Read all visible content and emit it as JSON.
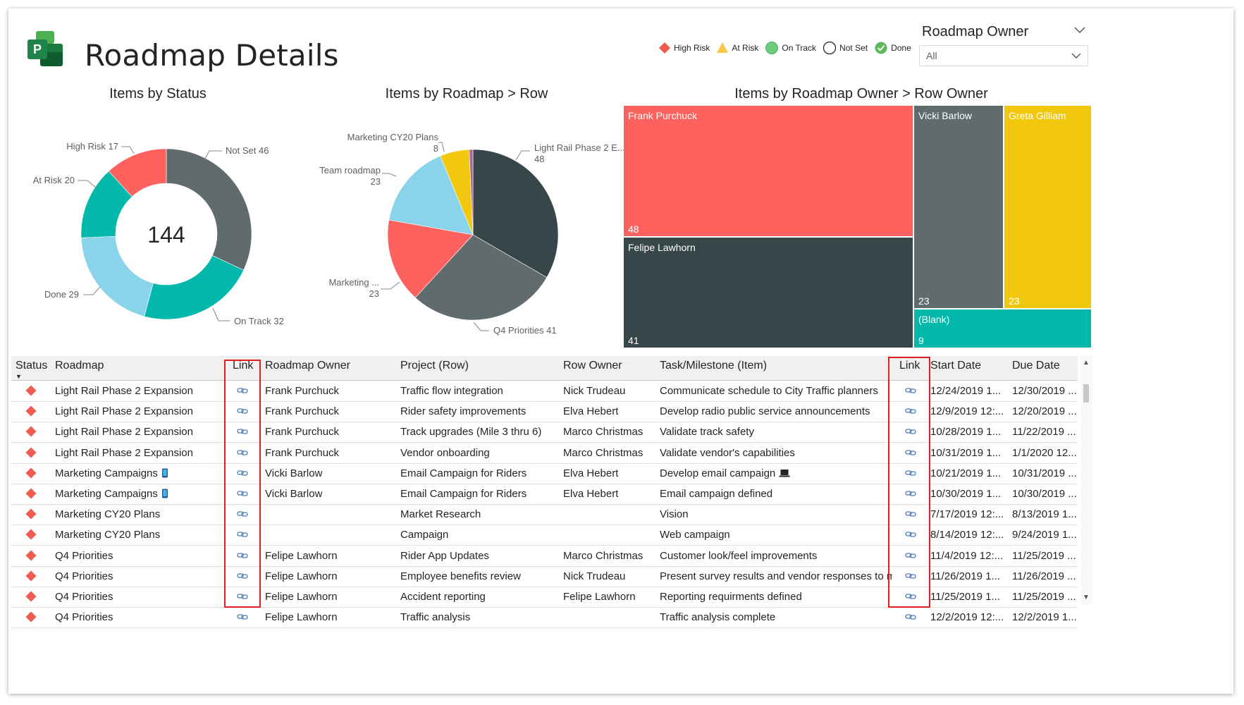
{
  "header": {
    "title": "Roadmap Details",
    "legend": [
      {
        "label": "High Risk",
        "icon": "diamond-icon",
        "color": "#f05b4f"
      },
      {
        "label": "At Risk",
        "icon": "triangle-icon",
        "color": "#f7c948"
      },
      {
        "label": "On Track",
        "icon": "circle-filled-icon",
        "color": "#6dcc7c"
      },
      {
        "label": "Not Set",
        "icon": "circle-empty-icon",
        "color": "#252423"
      },
      {
        "label": "Done",
        "icon": "check-circle-icon",
        "color": "#5cb85c"
      }
    ]
  },
  "slicer": {
    "title": "Roadmap Owner",
    "value": "All"
  },
  "charts": {
    "status": {
      "title": "Items by Status",
      "center": "144"
    },
    "roadmap": {
      "title": "Items by Roadmap > Row"
    },
    "owner": {
      "title": "Items by Roadmap Owner > Row Owner"
    }
  },
  "chart_data": [
    {
      "type": "pie",
      "title": "Items by Status",
      "donut": true,
      "total": 144,
      "categories": [
        "Not Set",
        "On Track",
        "Done",
        "At Risk",
        "High Risk"
      ],
      "values": [
        46,
        32,
        29,
        20,
        17
      ],
      "colors": [
        "#5f6b6d",
        "#01b8aa",
        "#8ad4eb",
        "#01b8aa",
        "#fd625e"
      ],
      "labels": [
        "Not Set 46",
        "On Track 32",
        "Done 29",
        "At Risk 20",
        "High Risk 17"
      ]
    },
    {
      "type": "pie",
      "title": "Items by Roadmap > Row",
      "categories": [
        "Light Rail Phase 2 E...",
        "Q4 Priorities",
        "Marketing ...",
        "Team roadmap",
        "Marketing CY20 Plans",
        ""
      ],
      "values": [
        48,
        41,
        23,
        23,
        8,
        1
      ],
      "colors": [
        "#374649",
        "#5f6b6d",
        "#fd625e",
        "#8ad4eb",
        "#f2c80f",
        "#a66999"
      ],
      "labels": [
        [
          "Light Rail Phase 2 E...",
          "48"
        ],
        [
          "Q4 Priorities 41"
        ],
        [
          "Marketing ...",
          "23"
        ],
        [
          "Team roadmap",
          "23"
        ],
        [
          "Marketing CY20 Plans",
          "8"
        ]
      ]
    },
    {
      "type": "treemap",
      "title": "Items by Roadmap Owner > Row Owner",
      "categories": [
        "Frank Purchuck",
        "Felipe Lawhorn",
        "Vicki Barlow",
        "Greta Gilliam",
        "(Blank)"
      ],
      "values": [
        48,
        41,
        23,
        23,
        9
      ],
      "colors": [
        "#fd625e",
        "#374649",
        "#5f6b6d",
        "#f2c80f",
        "#01b8aa"
      ]
    }
  ],
  "table": {
    "headers": [
      "Status",
      "Roadmap",
      "Link",
      "Roadmap Owner",
      "Project (Row)",
      "Row Owner",
      "Task/Milestone (Item)",
      "Link",
      "Start Date",
      "Due Date"
    ],
    "rows": [
      {
        "roadmap": "Light Rail Phase 2 Expansion",
        "roadmap_icon": "",
        "owner": "Frank Purchuck",
        "project": "Traffic flow integration",
        "row_owner": "Nick Trudeau",
        "task": "Communicate schedule to City Traffic planners",
        "task_icon": "",
        "start": "12/24/2019 1...",
        "due": "12/30/2019 ..."
      },
      {
        "roadmap": "Light Rail Phase 2 Expansion",
        "roadmap_icon": "",
        "owner": "Frank Purchuck",
        "project": "Rider safety improvements",
        "row_owner": "Elva Hebert",
        "task": "Develop radio public service announcements",
        "task_icon": "",
        "start": "12/9/2019 12:...",
        "due": "12/20/2019 ..."
      },
      {
        "roadmap": "Light Rail Phase 2 Expansion",
        "roadmap_icon": "",
        "owner": "Frank Purchuck",
        "project": "Track upgrades (Mile 3 thru 6)",
        "row_owner": "Marco Christmas",
        "task": "Validate track safety",
        "task_icon": "",
        "start": "10/28/2019 1...",
        "due": "11/22/2019 ..."
      },
      {
        "roadmap": "Light Rail Phase 2 Expansion",
        "roadmap_icon": "",
        "owner": "Frank Purchuck",
        "project": "Vendor onboarding",
        "row_owner": "Marco Christmas",
        "task": "Validate vendor's capabilities",
        "task_icon": "",
        "start": "10/31/2019 1...",
        "due": "1/1/2020 12..."
      },
      {
        "roadmap": "Marketing Campaigns",
        "roadmap_icon": "phone-icon",
        "owner": "Vicki Barlow",
        "project": "Email Campaign for Riders",
        "row_owner": "Elva Hebert",
        "task": "Develop email campaign",
        "task_icon": "laptop-icon",
        "start": "10/21/2019 1...",
        "due": "10/31/2019 ..."
      },
      {
        "roadmap": "Marketing Campaigns",
        "roadmap_icon": "phone-icon",
        "owner": "Vicki Barlow",
        "project": "Email Campaign for Riders",
        "row_owner": "Elva Hebert",
        "task": "Email campaign defined",
        "task_icon": "",
        "start": "10/30/2019 1...",
        "due": "10/30/2019 ..."
      },
      {
        "roadmap": "Marketing CY20 Plans",
        "roadmap_icon": "",
        "owner": "",
        "project": "Market Research",
        "row_owner": "",
        "task": "Vision",
        "task_icon": "",
        "start": "7/17/2019 12:...",
        "due": "8/13/2019 1..."
      },
      {
        "roadmap": "Marketing CY20 Plans",
        "roadmap_icon": "",
        "owner": "",
        "project": "Campaign",
        "row_owner": "",
        "task": "Web campaign",
        "task_icon": "",
        "start": "8/14/2019 12:...",
        "due": "9/24/2019 1..."
      },
      {
        "roadmap": "Q4 Priorities",
        "roadmap_icon": "",
        "owner": "Felipe Lawhorn",
        "project": "Rider App Updates",
        "row_owner": "Marco Christmas",
        "task": "Customer look/feel improvements",
        "task_icon": "",
        "start": "11/4/2019 12:...",
        "due": "11/25/2019 ..."
      },
      {
        "roadmap": "Q4 Priorities",
        "roadmap_icon": "",
        "owner": "Felipe Lawhorn",
        "project": "Employee benefits review",
        "row_owner": "Nick Trudeau",
        "task": "Present survey results and vendor responses to m...",
        "task_icon": "",
        "start": "11/26/2019 1...",
        "due": "11/26/2019 ..."
      },
      {
        "roadmap": "Q4 Priorities",
        "roadmap_icon": "",
        "owner": "Felipe Lawhorn",
        "project": "Accident reporting",
        "row_owner": "Felipe Lawhorn",
        "task": "Reporting requirments defined",
        "task_icon": "",
        "start": "11/25/2019 1...",
        "due": "11/25/2019 ..."
      },
      {
        "roadmap": "Q4 Priorities",
        "roadmap_icon": "",
        "owner": "Felipe Lawhorn",
        "project": "Traffic analysis",
        "row_owner": "",
        "task": "Traffic analysis complete",
        "task_icon": "",
        "start": "12/2/2019 12:...",
        "due": "12/2/2019 1..."
      }
    ]
  }
}
